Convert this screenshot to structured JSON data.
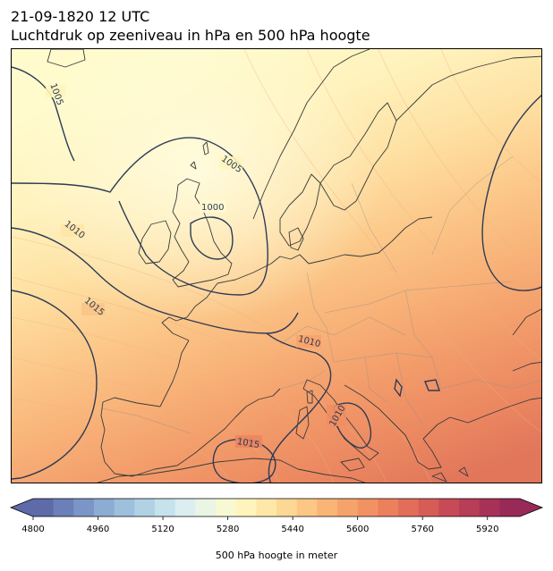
{
  "header": {
    "datetime": "21-09-1820 12 UTC",
    "title": "Luchtdruk op zeeniveau in hPa en 500 hPa hoogte"
  },
  "map": {
    "isobar_labels": [
      "1005",
      "1005",
      "1000",
      "1010",
      "1015",
      "1010",
      "1010",
      "1015"
    ],
    "colors": {
      "isobar": "#2e3b55",
      "coast": "#3a3a3a",
      "border": "#9a8f86"
    }
  },
  "colorbar": {
    "title": "500 hPa hoogte in meter",
    "ticks": [
      "4800",
      "4960",
      "5120",
      "5280",
      "5440",
      "5600",
      "5760",
      "5920"
    ],
    "range": [
      4800,
      6000
    ],
    "colors": [
      "#5f6aa8",
      "#6b80b8",
      "#7b96c6",
      "#8cacd3",
      "#9dc0dc",
      "#b1d2e4",
      "#c6e2ec",
      "#dbeef0",
      "#eaf5e4",
      "#f7f9d2",
      "#fff5bc",
      "#fee8a7",
      "#fdd895",
      "#fcc684",
      "#f9b476",
      "#f6a36b",
      "#f29263",
      "#ec805d",
      "#e26e59",
      "#d65c57",
      "#c74b56",
      "#b83d56",
      "#a83257",
      "#982a58"
    ]
  }
}
